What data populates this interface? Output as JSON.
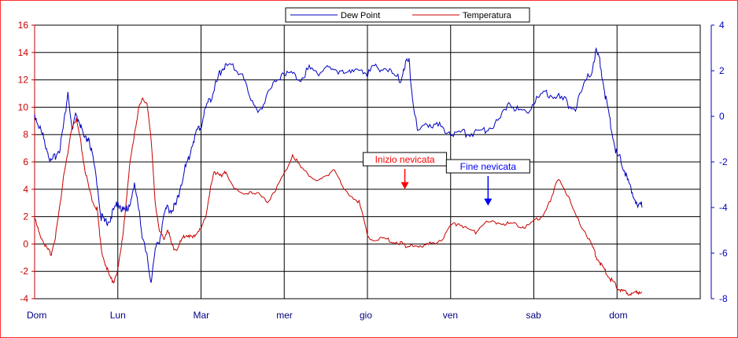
{
  "chart_data": {
    "type": "line",
    "title": "",
    "colors": {
      "dew_point": "#0000c0",
      "temperatura": "#c80000",
      "grid": "#000000",
      "left_axis": "#c80000",
      "right_axis": "#0000c0"
    },
    "x_categories": [
      "Dom",
      "Lun",
      "Mar",
      "mer",
      "gio",
      "ven",
      "sab",
      "dom"
    ],
    "xlim": [
      0,
      8
    ],
    "left_axis": {
      "ylim": [
        -4,
        16
      ],
      "ticks": [
        -4,
        -2,
        0,
        2,
        4,
        6,
        8,
        10,
        12,
        14,
        16
      ]
    },
    "right_axis": {
      "ylim": [
        -8,
        4
      ],
      "ticks": [
        -8,
        -6,
        -4,
        -2,
        0,
        2,
        4
      ]
    },
    "legend": {
      "position": "top-center",
      "entries": [
        "Dew Point",
        "Temperatura"
      ]
    },
    "grid": true,
    "series": [
      {
        "name": "Dew Point",
        "axis": "right",
        "x": [
          0,
          0.05,
          0.1,
          0.15,
          0.2,
          0.25,
          0.3,
          0.35,
          0.4,
          0.45,
          0.5,
          0.55,
          0.6,
          0.65,
          0.7,
          0.75,
          0.8,
          0.85,
          0.9,
          0.95,
          1.0,
          1.05,
          1.1,
          1.15,
          1.2,
          1.25,
          1.3,
          1.35,
          1.4,
          1.45,
          1.5,
          1.55,
          1.6,
          1.65,
          1.7,
          1.75,
          1.8,
          1.85,
          1.9,
          1.95,
          2.0,
          2.05,
          2.1,
          2.15,
          2.2,
          2.25,
          2.3,
          2.4,
          2.5,
          2.6,
          2.7,
          2.8,
          2.9,
          3.0,
          3.1,
          3.2,
          3.3,
          3.4,
          3.5,
          3.6,
          3.7,
          3.8,
          3.9,
          4.0,
          4.1,
          4.2,
          4.3,
          4.4,
          4.45,
          4.5,
          4.55,
          4.6,
          4.7,
          4.8,
          4.9,
          5.0,
          5.1,
          5.2,
          5.3,
          5.4,
          5.5,
          5.6,
          5.7,
          5.8,
          5.9,
          6.0,
          6.1,
          6.2,
          6.3,
          6.4,
          6.5,
          6.6,
          6.7,
          6.75,
          6.8,
          6.85,
          6.9,
          6.95,
          7.0,
          7.05,
          7.1,
          7.15,
          7.2,
          7.25,
          7.3
        ],
        "values": [
          0,
          -0.5,
          -1.0,
          -1.5,
          -2.2,
          -1.8,
          -1.5,
          -0.5,
          1.0,
          -0.8,
          0,
          -0.5,
          -1.2,
          -1.0,
          -2.0,
          -3.0,
          -4.5,
          -4.8,
          -4.6,
          -4.3,
          -3.8,
          -4.2,
          -4.3,
          -3.8,
          -3.2,
          -4.0,
          -5.5,
          -6.3,
          -7.3,
          -6.0,
          -5.5,
          -4.5,
          -4.1,
          -4.2,
          -4.0,
          -3.2,
          -2.5,
          -2.0,
          -1.2,
          -0.8,
          -0.5,
          0.2,
          0.6,
          1.0,
          1.5,
          2.0,
          2.1,
          2.0,
          1.8,
          0.5,
          0.2,
          0.8,
          1.5,
          1.9,
          1.7,
          1.6,
          2.0,
          1.8,
          2.1,
          1.8,
          2.0,
          1.7,
          2.1,
          1.8,
          2.0,
          2.1,
          1.7,
          1.5,
          2.2,
          2.3,
          0.5,
          -0.8,
          -0.4,
          -0.5,
          -0.6,
          -0.8,
          -0.9,
          -0.8,
          -0.8,
          -0.7,
          -0.5,
          -0.2,
          0.6,
          0.2,
          -0.0,
          0.6,
          0.8,
          0.9,
          0.7,
          0.5,
          0.2,
          1.2,
          2.0,
          2.8,
          2.2,
          1.0,
          0,
          -1.0,
          -1.8,
          -2.0,
          -2.6,
          -3.2,
          -3.5,
          -4.2,
          -4.0
        ]
      },
      {
        "name": "Temperatura",
        "axis": "left",
        "x": [
          0,
          0.05,
          0.1,
          0.15,
          0.2,
          0.25,
          0.3,
          0.35,
          0.4,
          0.45,
          0.5,
          0.55,
          0.6,
          0.65,
          0.7,
          0.75,
          0.8,
          0.85,
          0.9,
          0.95,
          1.0,
          1.05,
          1.1,
          1.15,
          1.2,
          1.25,
          1.3,
          1.35,
          1.4,
          1.45,
          1.5,
          1.55,
          1.6,
          1.65,
          1.7,
          1.75,
          1.8,
          1.85,
          1.9,
          1.95,
          2.0,
          2.05,
          2.1,
          2.15,
          2.2,
          2.25,
          2.3,
          2.4,
          2.5,
          2.6,
          2.7,
          2.8,
          2.9,
          3.0,
          3.1,
          3.2,
          3.3,
          3.4,
          3.5,
          3.6,
          3.7,
          3.8,
          3.9,
          4.0,
          4.1,
          4.2,
          4.3,
          4.4,
          4.45,
          4.5,
          4.55,
          4.6,
          4.7,
          4.8,
          4.9,
          5.0,
          5.1,
          5.2,
          5.3,
          5.4,
          5.5,
          5.6,
          5.7,
          5.8,
          5.9,
          6.0,
          6.1,
          6.2,
          6.3,
          6.4,
          6.5,
          6.6,
          6.7,
          6.75,
          6.8,
          6.85,
          6.9,
          6.95,
          7.0,
          7.05,
          7.1,
          7.15,
          7.2,
          7.25,
          7.3
        ],
        "values": [
          1.8,
          0.8,
          0.2,
          -0.5,
          -0.8,
          0.5,
          2.5,
          5.0,
          6.5,
          8.5,
          9.0,
          7.5,
          5.5,
          4.0,
          3.0,
          2.5,
          -0.5,
          -1.5,
          -2.5,
          -2.8,
          -2.0,
          0,
          3.0,
          6.0,
          8.0,
          9.8,
          10.5,
          10.3,
          7.5,
          3.0,
          0.8,
          0.3,
          1.0,
          -0.2,
          -0.5,
          0.0,
          0.5,
          0.6,
          0.3,
          0.8,
          1.0,
          1.8,
          3.5,
          5.0,
          5.2,
          4.8,
          5.2,
          4.0,
          3.5,
          3.8,
          3.5,
          3.0,
          4.0,
          5.0,
          6.5,
          5.5,
          5.0,
          4.5,
          4.8,
          5.5,
          4.0,
          3.5,
          3.0,
          0.5,
          0.2,
          0.3,
          0.1,
          0.0,
          -0.2,
          -0.2,
          -0.3,
          -0.2,
          -0.2,
          0.0,
          0.3,
          1.2,
          1.5,
          1.0,
          0.8,
          1.5,
          1.5,
          1.5,
          1.4,
          1.3,
          1.2,
          1.5,
          2.0,
          3.0,
          4.8,
          3.5,
          2.0,
          1.0,
          -0.2,
          -1.0,
          -1.5,
          -2.0,
          -2.5,
          -2.8,
          -3.2,
          -3.5,
          -3.6,
          -3.7,
          -3.8,
          -3.6,
          -3.5
        ]
      }
    ],
    "annotations": [
      {
        "text": "Inizio nevicata",
        "x": 4.45,
        "y_left": 4.0,
        "color": "#ff0000"
      },
      {
        "text": "Fine nevicata",
        "x": 5.45,
        "y_left": 2.8,
        "color": "#0000ff"
      }
    ]
  }
}
